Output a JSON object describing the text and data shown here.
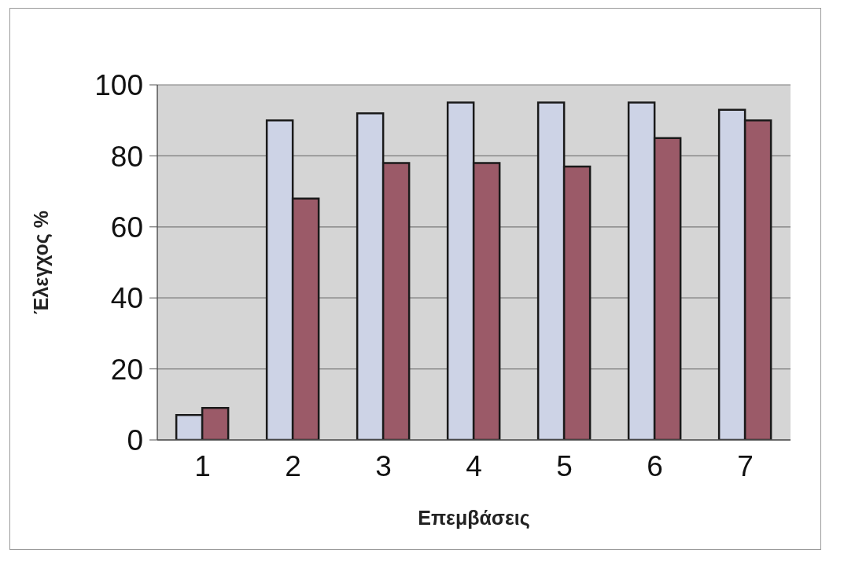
{
  "chart_data": {
    "type": "bar",
    "xlabel": "Επεμβάσεις",
    "ylabel": "Έλεγχος %",
    "categories": [
      "1",
      "2",
      "3",
      "4",
      "5",
      "6",
      "7"
    ],
    "series": [
      {
        "color": "#cdd3e6",
        "values": [
          7,
          90,
          92,
          95,
          95,
          95,
          93
        ]
      },
      {
        "color": "#9b5a68",
        "values": [
          9,
          68,
          78,
          78,
          77,
          85,
          90
        ]
      }
    ],
    "ylim": [
      0,
      100
    ],
    "yticks": [
      0,
      20,
      40,
      60,
      80,
      100
    ],
    "grid": "y"
  }
}
